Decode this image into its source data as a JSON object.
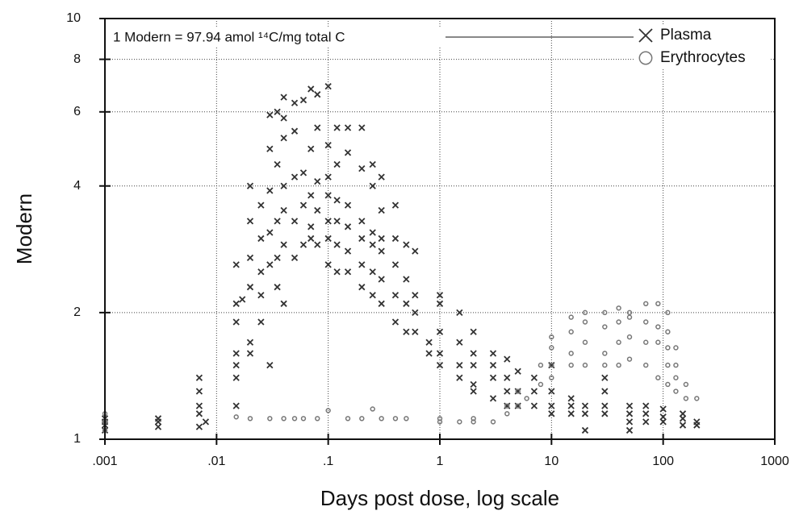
{
  "chart_data": {
    "type": "scatter",
    "annotation": "1 Modern = 97.94 amol ¹⁴C/mg total C",
    "xlabel": "Days post dose, log scale",
    "ylabel": "Modern",
    "xscale": "log",
    "yscale": "log",
    "xlim": [
      0.001,
      1000
    ],
    "ylim": [
      1,
      10
    ],
    "xticks": [
      {
        "value": 0.001,
        "label": ".001"
      },
      {
        "value": 0.01,
        "label": ".01"
      },
      {
        "value": 0.1,
        "label": ".1"
      },
      1,
      10,
      100,
      1000
    ],
    "yticks": [
      1,
      2,
      4,
      6,
      8,
      10
    ],
    "grid": true,
    "legend": "upper right",
    "series": [
      {
        "name": "Plasma",
        "color": "#333333",
        "marker": "x",
        "x": [
          0.001,
          0.001,
          0.001,
          0.001,
          0.003,
          0.003,
          0.003,
          0.007,
          0.007,
          0.007,
          0.007,
          0.007,
          0.008,
          0.015,
          0.015,
          0.015,
          0.015,
          0.015,
          0.015,
          0.015,
          0.017,
          0.02,
          0.02,
          0.02,
          0.02,
          0.02,
          0.02,
          0.025,
          0.025,
          0.025,
          0.025,
          0.025,
          0.03,
          0.03,
          0.03,
          0.03,
          0.03,
          0.03,
          0.035,
          0.035,
          0.035,
          0.035,
          0.035,
          0.04,
          0.04,
          0.04,
          0.04,
          0.04,
          0.04,
          0.04,
          0.05,
          0.05,
          0.05,
          0.05,
          0.05,
          0.06,
          0.06,
          0.06,
          0.06,
          0.07,
          0.07,
          0.07,
          0.07,
          0.07,
          0.08,
          0.08,
          0.08,
          0.08,
          0.08,
          0.1,
          0.1,
          0.1,
          0.1,
          0.1,
          0.1,
          0.1,
          0.12,
          0.12,
          0.12,
          0.12,
          0.12,
          0.12,
          0.15,
          0.15,
          0.15,
          0.15,
          0.15,
          0.15,
          0.2,
          0.2,
          0.2,
          0.2,
          0.2,
          0.2,
          0.25,
          0.25,
          0.25,
          0.25,
          0.25,
          0.25,
          0.3,
          0.3,
          0.3,
          0.3,
          0.3,
          0.3,
          0.4,
          0.4,
          0.4,
          0.4,
          0.4,
          0.5,
          0.5,
          0.5,
          0.5,
          0.6,
          0.6,
          0.6,
          0.6,
          0.8,
          0.8,
          1,
          1,
          1,
          1,
          1,
          1.5,
          1.5,
          1.5,
          1.5,
          2,
          2,
          2,
          2,
          2,
          3,
          3,
          3,
          3,
          4,
          4,
          4,
          4,
          5,
          5,
          5,
          7,
          7,
          7,
          10,
          10,
          10,
          10,
          15,
          15,
          15,
          20,
          20,
          20,
          30,
          30,
          30,
          30,
          50,
          50,
          50,
          50,
          70,
          70,
          70,
          100,
          100,
          100,
          150,
          150,
          150,
          200,
          200
        ],
        "values": [
          1.05,
          1.1,
          1.12,
          1.08,
          1.1,
          1.07,
          1.12,
          1.3,
          1.4,
          1.15,
          1.2,
          1.07,
          1.1,
          1.2,
          1.4,
          1.5,
          1.6,
          1.9,
          2.1,
          2.6,
          2.15,
          1.6,
          1.7,
          2.3,
          2.7,
          3.3,
          4.0,
          1.9,
          2.2,
          2.5,
          3.0,
          3.6,
          1.5,
          2.6,
          3.1,
          3.9,
          4.9,
          5.9,
          2.3,
          2.7,
          3.3,
          4.5,
          6.0,
          2.1,
          2.9,
          3.5,
          4.0,
          5.2,
          5.8,
          6.5,
          2.7,
          3.3,
          4.2,
          5.4,
          6.3,
          2.9,
          3.6,
          4.3,
          6.4,
          3.0,
          3.2,
          3.8,
          4.9,
          6.8,
          2.9,
          3.5,
          4.1,
          5.5,
          6.6,
          2.6,
          3.0,
          3.3,
          3.8,
          4.2,
          5.0,
          6.9,
          2.5,
          2.9,
          3.3,
          3.7,
          4.5,
          5.5,
          2.5,
          2.8,
          3.2,
          3.6,
          4.8,
          5.5,
          2.3,
          2.6,
          3.0,
          3.3,
          4.4,
          5.5,
          2.2,
          2.5,
          2.9,
          3.1,
          4.0,
          4.5,
          2.1,
          2.4,
          2.8,
          3.0,
          3.5,
          4.2,
          1.9,
          2.2,
          2.6,
          3.0,
          3.6,
          1.8,
          2.1,
          2.4,
          2.9,
          1.8,
          2.0,
          2.2,
          2.8,
          1.6,
          1.7,
          1.5,
          1.6,
          1.8,
          2.1,
          2.2,
          1.4,
          1.5,
          1.7,
          2.0,
          1.3,
          1.35,
          1.5,
          1.6,
          1.8,
          1.25,
          1.4,
          1.5,
          1.6,
          1.2,
          1.3,
          1.4,
          1.55,
          1.2,
          1.3,
          1.45,
          1.2,
          1.3,
          1.4,
          1.15,
          1.2,
          1.3,
          1.5,
          1.15,
          1.2,
          1.25,
          1.05,
          1.15,
          1.2,
          1.15,
          1.2,
          1.3,
          1.4,
          1.05,
          1.1,
          1.15,
          1.2,
          1.1,
          1.15,
          1.2,
          1.1,
          1.13,
          1.18,
          1.08,
          1.12,
          1.15,
          1.08,
          1.1
        ]
      },
      {
        "name": "Erythrocytes",
        "color": "#777777",
        "marker": "o",
        "x": [
          0.001,
          0.001,
          0.001,
          0.015,
          0.02,
          0.03,
          0.04,
          0.05,
          0.06,
          0.08,
          0.1,
          0.15,
          0.2,
          0.25,
          0.3,
          0.4,
          0.5,
          1,
          1,
          1.5,
          2,
          2,
          3,
          4,
          4,
          5,
          5,
          6,
          8,
          8,
          10,
          10,
          10,
          10,
          15,
          15,
          15,
          15,
          20,
          20,
          20,
          20,
          30,
          30,
          30,
          30,
          40,
          40,
          40,
          40,
          50,
          50,
          50,
          50,
          70,
          70,
          70,
          70,
          90,
          90,
          90,
          90,
          110,
          110,
          110,
          110,
          110,
          130,
          130,
          130,
          130,
          160,
          160,
          200
        ],
        "values": [
          1.15,
          1.1,
          1.05,
          1.13,
          1.12,
          1.12,
          1.12,
          1.12,
          1.12,
          1.12,
          1.17,
          1.12,
          1.12,
          1.18,
          1.12,
          1.12,
          1.12,
          1.1,
          1.12,
          1.1,
          1.1,
          1.12,
          1.1,
          1.15,
          1.2,
          1.2,
          1.3,
          1.25,
          1.35,
          1.5,
          1.4,
          1.5,
          1.65,
          1.75,
          1.5,
          1.6,
          1.8,
          1.95,
          1.5,
          1.7,
          1.9,
          2.0,
          1.5,
          1.6,
          1.85,
          2.0,
          1.5,
          1.7,
          1.9,
          2.05,
          1.55,
          1.75,
          1.95,
          2.0,
          1.5,
          1.7,
          1.9,
          2.1,
          1.4,
          1.7,
          1.85,
          2.1,
          1.35,
          1.5,
          1.65,
          1.8,
          2.0,
          1.3,
          1.4,
          1.5,
          1.65,
          1.25,
          1.35,
          1.25
        ]
      }
    ]
  }
}
